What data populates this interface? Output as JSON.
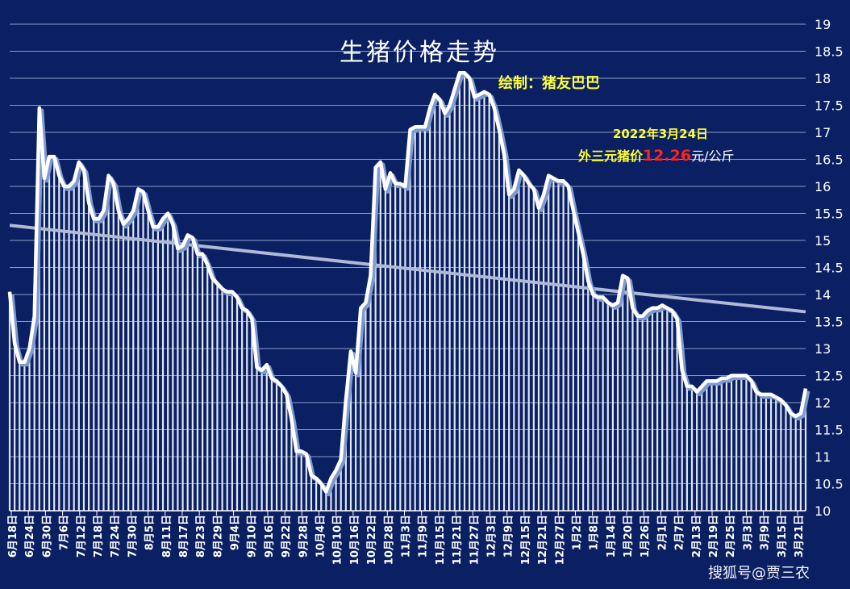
{
  "chart_data": {
    "type": "area",
    "title": "生猪价格走势",
    "credit": "绘制：猪友巴巴",
    "annotation": {
      "date": "2022年3月24日",
      "label": "外三元猪价",
      "value": "12.26",
      "unit": "元/公斤"
    },
    "ylim": [
      10,
      19
    ],
    "yticks": [
      10,
      10.5,
      11,
      11.5,
      12,
      12.5,
      13,
      13.5,
      14,
      14.5,
      15,
      15.5,
      16,
      16.5,
      17,
      17.5,
      18,
      18.5,
      19
    ],
    "xlabels": [
      "6月18日",
      "6月24日",
      "6月30日",
      "7月6日",
      "7月12日",
      "7月18日",
      "7月24日",
      "7月30日",
      "8月5日",
      "8月11日",
      "8月17日",
      "8月23日",
      "8月29日",
      "9月4日",
      "9月10日",
      "9月16日",
      "9月22日",
      "9月28日",
      "10月4日",
      "10月10日",
      "10月16日",
      "10月22日",
      "10月28日",
      "11月3日",
      "11月9日",
      "11月15日",
      "11月21日",
      "11月27日",
      "12月3日",
      "12月9日",
      "12月15日",
      "12月21日",
      "12月27日",
      "1月2日",
      "1月8日",
      "1月14日",
      "1月20日",
      "1月26日",
      "2月1日",
      "2月7日",
      "2月13日",
      "2月19日",
      "2月25日",
      "3月3日",
      "3月9日",
      "3月15日",
      "3月21日"
    ],
    "series": [
      {
        "values": [
          14.05,
          13.1,
          12.75,
          12.75,
          13.0,
          13.6,
          17.45,
          16.15,
          16.55,
          16.55,
          16.2,
          16.0,
          16.0,
          16.1,
          16.45,
          16.3,
          15.7,
          15.4,
          15.4,
          15.55,
          16.2,
          16.05,
          15.55,
          15.3,
          15.4,
          15.55,
          15.95,
          15.9,
          15.55,
          15.25,
          15.25,
          15.4,
          15.5,
          15.3,
          14.85,
          14.9,
          15.1,
          15.05,
          14.75,
          14.75,
          14.55,
          14.3,
          14.2,
          14.1,
          14.05,
          14.05,
          13.95,
          13.75,
          13.7,
          13.55,
          12.65,
          12.6,
          12.7,
          12.45,
          12.4,
          12.3,
          12.15,
          11.7,
          11.1,
          11.1,
          11.05,
          10.65,
          10.6,
          10.5,
          10.35,
          10.6,
          10.75,
          10.95,
          12.05,
          12.95,
          12.55,
          13.75,
          13.85,
          14.35,
          16.35,
          16.45,
          15.95,
          16.25,
          16.05,
          16.05,
          16.0,
          17.05,
          17.1,
          17.1,
          17.1,
          17.45,
          17.7,
          17.6,
          17.35,
          17.5,
          17.8,
          18.1,
          18.1,
          18.0,
          17.65,
          17.7,
          17.75,
          17.7,
          17.45,
          17.05,
          16.6,
          15.85,
          15.95,
          16.3,
          16.2,
          16.05,
          15.95,
          15.6,
          15.85,
          16.2,
          16.15,
          16.1,
          16.1,
          16.0,
          15.55,
          15.15,
          14.75,
          14.25,
          14.0,
          13.95,
          13.95,
          13.85,
          13.8,
          13.85,
          14.35,
          14.3,
          13.75,
          13.6,
          13.6,
          13.7,
          13.75,
          13.75,
          13.8,
          13.75,
          13.7,
          13.55,
          12.6,
          12.3,
          12.3,
          12.2,
          12.3,
          12.4,
          12.4,
          12.4,
          12.45,
          12.45,
          12.5,
          12.5,
          12.5,
          12.5,
          12.4,
          12.2,
          12.15,
          12.15,
          12.15,
          12.1,
          12.05,
          11.95,
          11.8,
          11.75,
          11.8,
          12.26
        ]
      }
    ],
    "trendline": {
      "start": 15.28,
      "end": 13.68
    },
    "colors": {
      "background": "#0b1f63",
      "line": "#ffffff",
      "shadow": "#7f9ad0",
      "bars": "#dfe6f4",
      "grid": "#b8c6ea",
      "trend": "#aebad6",
      "title": "#ffffff",
      "credit": "#ffff33",
      "highlight": "#ff2020"
    },
    "grid": true,
    "y_axis_side": "right"
  },
  "watermark": "搜狐号@贾三农"
}
